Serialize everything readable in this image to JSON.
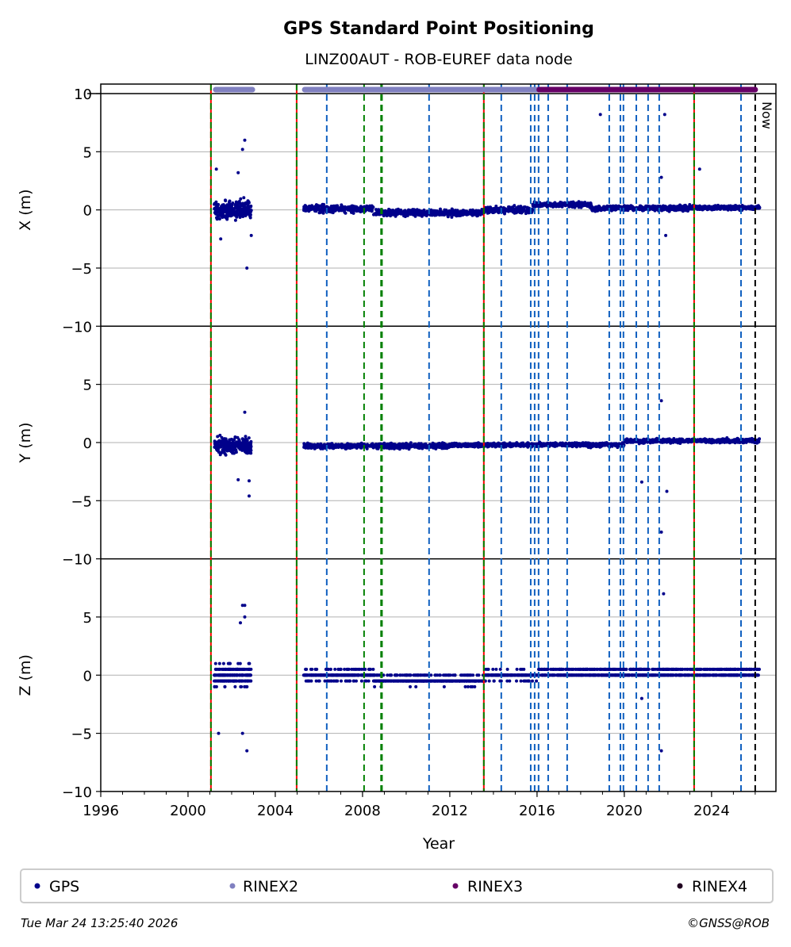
{
  "chart_data": {
    "type": "scatter",
    "title": "GPS Standard Point Positioning",
    "subtitle": "LINZ00AUT - ROB-EUREF data node",
    "xlabel": "Year",
    "xlim": [
      1996,
      2026.95
    ],
    "xticks": [
      1996,
      2000,
      2004,
      2008,
      2012,
      2016,
      2020,
      2024
    ],
    "panels": [
      {
        "ylabel": "X (m)",
        "ylim": [
          -10,
          10
        ],
        "yticks": [
          10,
          5,
          0,
          -5,
          -10
        ],
        "tick_labels": [
          "10",
          "5",
          "0",
          "−5",
          "−10"
        ],
        "segments": [
          {
            "from": 2001.2,
            "to": 2002.9,
            "mean": 0,
            "spread": 0.9
          },
          {
            "from": 2005.3,
            "to": 2008.5,
            "mean": 0.1,
            "spread": 0.35
          },
          {
            "from": 2008.5,
            "to": 2013.6,
            "mean": -0.25,
            "spread": 0.3
          },
          {
            "from": 2013.6,
            "to": 2015.8,
            "mean": 0.0,
            "spread": 0.3
          },
          {
            "from": 2015.8,
            "to": 2018.5,
            "mean": 0.45,
            "spread": 0.25
          },
          {
            "from": 2018.5,
            "to": 2023.3,
            "mean": 0.15,
            "spread": 0.25
          },
          {
            "from": 2023.3,
            "to": 2026.2,
            "mean": 0.2,
            "spread": 0.2
          }
        ],
        "outliers": [
          [
            2002.6,
            6
          ],
          [
            2002.5,
            5.2
          ],
          [
            2001.3,
            3.5
          ],
          [
            2002.3,
            3.2
          ],
          [
            2002.7,
            -5
          ],
          [
            2001.5,
            -2.5
          ],
          [
            2002.9,
            -2.2
          ],
          [
            2018.9,
            8.2
          ],
          [
            2021.85,
            8.2
          ],
          [
            2021.7,
            2.8
          ],
          [
            2021.9,
            -2.2
          ],
          [
            2023.45,
            3.5
          ]
        ]
      },
      {
        "ylabel": "Y (m)",
        "ylim": [
          -10,
          10
        ],
        "yticks": [
          5,
          0,
          -5,
          -10
        ],
        "tick_labels": [
          "5",
          "0",
          "−5",
          "−10"
        ],
        "segments": [
          {
            "from": 2001.2,
            "to": 2002.9,
            "mean": -0.3,
            "spread": 0.8
          },
          {
            "from": 2005.3,
            "to": 2012.0,
            "mean": -0.3,
            "spread": 0.25
          },
          {
            "from": 2012.0,
            "to": 2020.0,
            "mean": -0.2,
            "spread": 0.2
          },
          {
            "from": 2020.0,
            "to": 2026.2,
            "mean": 0.15,
            "spread": 0.2
          }
        ],
        "outliers": [
          [
            2002.6,
            2.6
          ],
          [
            2002.8,
            -4.6
          ],
          [
            2002.3,
            -3.2
          ],
          [
            2002.8,
            -3.3
          ],
          [
            2021.7,
            3.6
          ],
          [
            2020.8,
            -3.4
          ],
          [
            2021.95,
            -4.2
          ],
          [
            2021.7,
            -7.7
          ]
        ]
      },
      {
        "ylabel": "Z (m)",
        "ylim": [
          -10,
          10
        ],
        "yticks": [
          5,
          0,
          -5,
          -10
        ],
        "tick_labels": [
          "5",
          "0",
          "−5",
          "−10"
        ],
        "quantize": 0.5,
        "segments": [
          {
            "from": 2001.2,
            "to": 2002.9,
            "mean": 0,
            "spread": 1.0
          },
          {
            "from": 2005.3,
            "to": 2008.5,
            "mean": 0,
            "spread": 0.5
          },
          {
            "from": 2008.5,
            "to": 2013.6,
            "mean": -0.4,
            "spread": 0.4
          },
          {
            "from": 2013.6,
            "to": 2016.0,
            "mean": 0,
            "spread": 0.4
          },
          {
            "from": 2016.0,
            "to": 2026.2,
            "mean": 0.2,
            "spread": 0.3
          }
        ],
        "outliers": [
          [
            2002.5,
            6
          ],
          [
            2002.6,
            6
          ],
          [
            2002.6,
            5
          ],
          [
            2002.4,
            4.5
          ],
          [
            2002.7,
            -6.5
          ],
          [
            2001.4,
            -5
          ],
          [
            2002.5,
            -5
          ],
          [
            2021.8,
            7
          ],
          [
            2020.8,
            -2
          ],
          [
            2021.7,
            -6.5
          ]
        ]
      }
    ],
    "event_lines": {
      "receiver_antenna_change_red_green": [
        2001.05,
        2004.98,
        2013.56,
        2023.2
      ],
      "antenna_change_green": [
        2008.07,
        2008.85,
        2008.89
      ],
      "equipment_change_blue": [
        2006.36,
        2011.05,
        2014.36,
        2015.71,
        2015.89,
        2016.07,
        2016.51,
        2017.38,
        2019.31,
        2019.82,
        2019.96,
        2020.55,
        2021.09,
        2021.6,
        2025.35
      ],
      "now": 2026.0
    },
    "now_label": "Now",
    "availability": [
      {
        "format": "RINEX2",
        "from": 2001.27,
        "to": 2002.95
      },
      {
        "format": "RINEX2",
        "from": 2005.35,
        "to": 2016.1
      },
      {
        "format": "RINEX3",
        "from": 2016.1,
        "to": 2026.0
      }
    ],
    "legend": [
      {
        "label": "GPS",
        "color": "#00008b"
      },
      {
        "label": "RINEX2",
        "color": "#8080c0"
      },
      {
        "label": "RINEX3",
        "color": "#660066"
      },
      {
        "label": "RINEX4",
        "color": "#200020"
      }
    ],
    "legend_position": "bottom"
  },
  "footer": {
    "timestamp": "Tue Mar 24 13:25:40 2026",
    "credit": "©GNSS@ROB"
  }
}
